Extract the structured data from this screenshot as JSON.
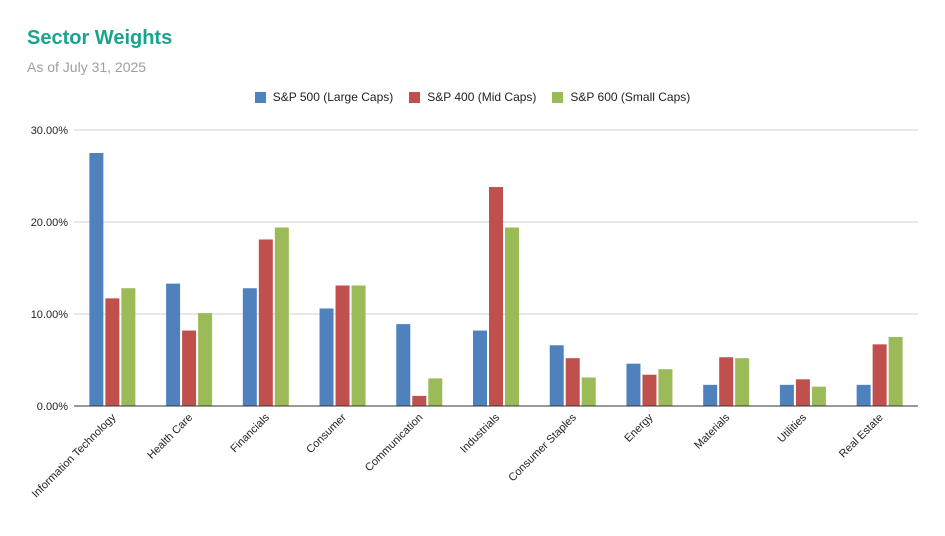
{
  "chart_data": {
    "type": "bar",
    "title": "Sector Weights",
    "subtitle": "As of July 31, 2025",
    "categories": [
      "Information Technology",
      "Health Care",
      "Financials",
      "Consumer",
      "Communication",
      "Industrials",
      "Consumer Staples",
      "Energy",
      "Materials",
      "Utilities",
      "Real Estate"
    ],
    "series": [
      {
        "name": "S&P 500 (Large Caps)",
        "color": "#4f81bd",
        "values": [
          27.5,
          13.3,
          12.8,
          10.6,
          8.9,
          8.2,
          6.6,
          4.6,
          2.3,
          2.3,
          2.3
        ]
      },
      {
        "name": "S&P 400 (Mid Caps)",
        "color": "#c0504d",
        "values": [
          11.7,
          8.2,
          18.1,
          13.1,
          1.1,
          23.8,
          5.2,
          3.4,
          5.3,
          2.9,
          6.7
        ]
      },
      {
        "name": "S&P 600 (Small Caps)",
        "color": "#9bbb59",
        "values": [
          12.8,
          10.1,
          19.4,
          13.1,
          3.0,
          19.4,
          3.1,
          4.0,
          5.2,
          2.1,
          7.5
        ]
      }
    ],
    "ylim": [
      0,
      30
    ],
    "yticks": [
      "0.00%",
      "10.00%",
      "20.00%",
      "30.00%"
    ],
    "ytick_values": [
      0,
      10,
      20,
      30
    ],
    "grid": true,
    "legend_position": "top-center",
    "xlabel": "",
    "ylabel": ""
  }
}
